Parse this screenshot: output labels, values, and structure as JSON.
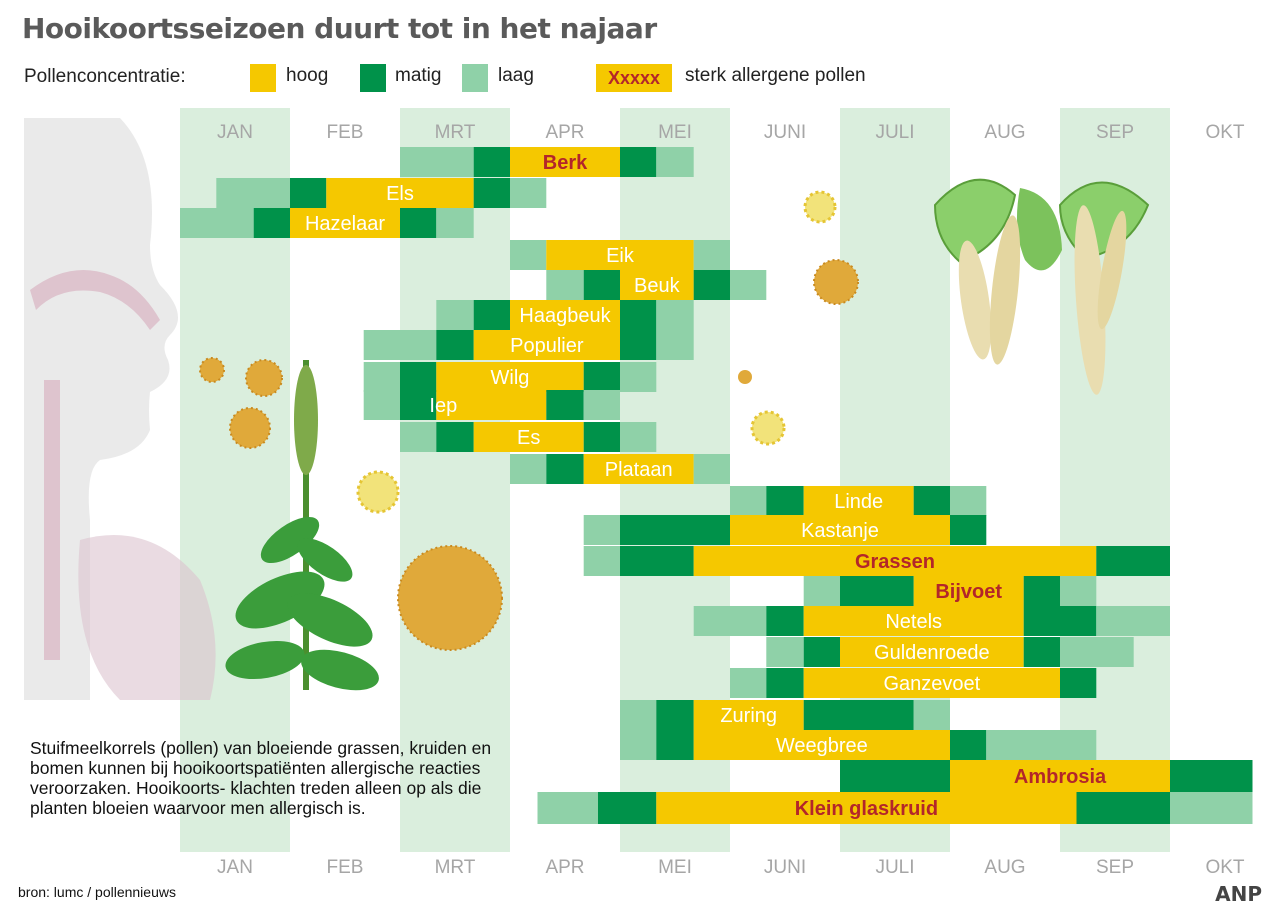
{
  "title": "Hooikoortsseizoen duurt tot in het najaar",
  "legend": {
    "title": "Pollenconcentratie:",
    "items": [
      {
        "level": "hoog",
        "label": "hoog",
        "color": "#f5c800"
      },
      {
        "level": "matig",
        "label": "matig",
        "color": "#00924a"
      },
      {
        "level": "laag",
        "label": "laag",
        "color": "#8fd1a8"
      }
    ],
    "strong_sample": "Xxxxx",
    "strong_label": "sterk allergene pollen",
    "strong_text_color": "#b3262a"
  },
  "note": "Stuifmeelkorrels (pollen) van bloeiende grassen, kruiden en bomen  kunnen bij hooikoortspatiënten allergische reacties veroorzaken. Hooikoorts- klachten treden alleen op als die  planten bloeien waarvoor men allergisch is.",
  "source": "bron:  lumc / pollennieuws",
  "brand": "ANP",
  "chart_data": {
    "type": "timeline",
    "x_unit": "month (1 = start of January)",
    "months": [
      "JAN",
      "FEB",
      "MRT",
      "APR",
      "MEI",
      "JUNI",
      "JULI",
      "AUG",
      "SEP",
      "OKT"
    ],
    "shaded_months": [
      "JAN",
      "MRT",
      "MEI",
      "JULI",
      "SEP"
    ],
    "colors": {
      "hoog": "#f5c800",
      "matig": "#00924a",
      "laag": "#8fd1a8"
    },
    "series": [
      {
        "name": "Berk",
        "strong": true,
        "segments": [
          [
            3.0,
            3.67,
            "laag"
          ],
          [
            3.67,
            4.0,
            "matig"
          ],
          [
            4.0,
            5.0,
            "hoog"
          ],
          [
            5.0,
            5.33,
            "matig"
          ],
          [
            5.33,
            5.67,
            "laag"
          ]
        ]
      },
      {
        "name": "Els",
        "strong": false,
        "segments": [
          [
            1.33,
            2.0,
            "laag"
          ],
          [
            2.0,
            2.33,
            "matig"
          ],
          [
            2.33,
            3.67,
            "hoog"
          ],
          [
            3.67,
            4.0,
            "matig"
          ],
          [
            4.0,
            4.33,
            "laag"
          ]
        ]
      },
      {
        "name": "Hazelaar",
        "strong": false,
        "segments": [
          [
            1.0,
            1.67,
            "laag"
          ],
          [
            1.67,
            2.0,
            "matig"
          ],
          [
            2.0,
            3.0,
            "hoog"
          ],
          [
            3.0,
            3.33,
            "matig"
          ],
          [
            3.33,
            3.67,
            "laag"
          ]
        ]
      },
      {
        "name": "Eik",
        "strong": false,
        "segments": [
          [
            4.0,
            4.33,
            "laag"
          ],
          [
            4.33,
            5.67,
            "hoog"
          ],
          [
            5.67,
            6.0,
            "laag"
          ]
        ]
      },
      {
        "name": "Beuk",
        "strong": false,
        "segments": [
          [
            4.33,
            4.67,
            "laag"
          ],
          [
            4.67,
            5.0,
            "matig"
          ],
          [
            5.0,
            5.67,
            "hoog"
          ],
          [
            5.67,
            6.0,
            "matig"
          ],
          [
            6.0,
            6.33,
            "laag"
          ]
        ]
      },
      {
        "name": "Haagbeuk",
        "strong": false,
        "segments": [
          [
            3.33,
            3.67,
            "laag"
          ],
          [
            3.67,
            4.0,
            "matig"
          ],
          [
            4.0,
            5.0,
            "hoog"
          ],
          [
            5.0,
            5.33,
            "matig"
          ],
          [
            5.33,
            5.67,
            "laag"
          ]
        ]
      },
      {
        "name": "Populier",
        "strong": false,
        "segments": [
          [
            2.67,
            3.33,
            "laag"
          ],
          [
            3.33,
            3.67,
            "matig"
          ],
          [
            3.67,
            5.0,
            "hoog"
          ],
          [
            5.0,
            5.33,
            "matig"
          ],
          [
            5.33,
            5.67,
            "laag"
          ]
        ]
      },
      {
        "name": "Wilg",
        "strong": false,
        "segments": [
          [
            2.67,
            3.0,
            "laag"
          ],
          [
            3.0,
            3.33,
            "matig"
          ],
          [
            3.33,
            4.67,
            "hoog"
          ],
          [
            4.67,
            5.0,
            "matig"
          ],
          [
            5.0,
            5.33,
            "laag"
          ]
        ]
      },
      {
        "name": "Iep",
        "strong": false,
        "segments": [
          [
            2.67,
            3.0,
            "laag"
          ],
          [
            3.0,
            3.33,
            "matig"
          ],
          [
            3.33,
            4.33,
            "hoog"
          ],
          [
            4.33,
            4.67,
            "matig"
          ],
          [
            4.67,
            5.0,
            "laag"
          ]
        ]
      },
      {
        "name": "Es",
        "strong": false,
        "segments": [
          [
            3.0,
            3.33,
            "laag"
          ],
          [
            3.33,
            3.67,
            "matig"
          ],
          [
            3.67,
            4.67,
            "hoog"
          ],
          [
            4.67,
            5.0,
            "matig"
          ],
          [
            5.0,
            5.33,
            "laag"
          ]
        ]
      },
      {
        "name": "Plataan",
        "strong": false,
        "segments": [
          [
            4.0,
            4.33,
            "laag"
          ],
          [
            4.33,
            4.67,
            "matig"
          ],
          [
            4.67,
            5.67,
            "hoog"
          ],
          [
            5.67,
            6.0,
            "laag"
          ]
        ]
      },
      {
        "name": "Linde",
        "strong": false,
        "segments": [
          [
            6.0,
            6.33,
            "laag"
          ],
          [
            6.33,
            6.67,
            "matig"
          ],
          [
            6.67,
            7.67,
            "hoog"
          ],
          [
            7.67,
            8.0,
            "matig"
          ],
          [
            8.0,
            8.33,
            "laag"
          ]
        ]
      },
      {
        "name": "Kastanje",
        "strong": false,
        "segments": [
          [
            4.67,
            5.0,
            "laag"
          ],
          [
            5.0,
            6.0,
            "matig"
          ],
          [
            6.0,
            8.0,
            "hoog"
          ],
          [
            8.0,
            8.33,
            "matig"
          ]
        ]
      },
      {
        "name": "Grassen",
        "strong": true,
        "segments": [
          [
            4.67,
            5.0,
            "laag"
          ],
          [
            5.0,
            5.67,
            "matig"
          ],
          [
            5.67,
            9.33,
            "hoog"
          ],
          [
            9.33,
            10.0,
            "matig"
          ]
        ]
      },
      {
        "name": "Bijvoet",
        "strong": true,
        "segments": [
          [
            6.67,
            7.0,
            "laag"
          ],
          [
            7.0,
            7.67,
            "matig"
          ],
          [
            7.67,
            8.67,
            "hoog"
          ],
          [
            8.67,
            9.0,
            "matig"
          ],
          [
            9.0,
            9.33,
            "laag"
          ]
        ]
      },
      {
        "name": "Netels",
        "strong": false,
        "segments": [
          [
            5.67,
            6.33,
            "laag"
          ],
          [
            6.33,
            6.67,
            "matig"
          ],
          [
            6.67,
            8.67,
            "hoog"
          ],
          [
            8.67,
            9.33,
            "matig"
          ],
          [
            9.33,
            10.0,
            "laag"
          ]
        ]
      },
      {
        "name": "Guldenroede",
        "strong": false,
        "segments": [
          [
            6.33,
            6.67,
            "laag"
          ],
          [
            6.67,
            7.0,
            "matig"
          ],
          [
            7.0,
            8.67,
            "hoog"
          ],
          [
            8.67,
            9.0,
            "matig"
          ],
          [
            9.0,
            9.67,
            "laag"
          ]
        ]
      },
      {
        "name": "Ganzevoet",
        "strong": false,
        "segments": [
          [
            6.0,
            6.33,
            "laag"
          ],
          [
            6.33,
            6.67,
            "matig"
          ],
          [
            6.67,
            9.0,
            "hoog"
          ],
          [
            9.0,
            9.33,
            "matig"
          ]
        ]
      },
      {
        "name": "Zuring",
        "strong": false,
        "segments": [
          [
            5.0,
            5.33,
            "laag"
          ],
          [
            5.33,
            5.67,
            "matig"
          ],
          [
            5.67,
            6.67,
            "hoog"
          ],
          [
            6.67,
            7.67,
            "matig"
          ],
          [
            7.67,
            8.0,
            "laag"
          ]
        ]
      },
      {
        "name": "Weegbree",
        "strong": false,
        "segments": [
          [
            5.0,
            5.33,
            "laag"
          ],
          [
            5.33,
            5.67,
            "matig"
          ],
          [
            5.67,
            8.0,
            "hoog"
          ],
          [
            8.0,
            8.33,
            "matig"
          ],
          [
            8.33,
            9.33,
            "laag"
          ]
        ]
      },
      {
        "name": "Ambrosia",
        "strong": true,
        "segments": [
          [
            7.0,
            8.0,
            "matig"
          ],
          [
            8.0,
            10.0,
            "hoog"
          ],
          [
            10.0,
            10.75,
            "matig"
          ]
        ]
      },
      {
        "name": "Klein glaskruid",
        "strong": true,
        "segments": [
          [
            4.25,
            4.8,
            "laag"
          ],
          [
            4.8,
            5.33,
            "matig"
          ],
          [
            5.33,
            9.15,
            "hoog"
          ],
          [
            9.15,
            10.0,
            "matig"
          ],
          [
            10.0,
            10.75,
            "laag"
          ]
        ]
      }
    ]
  }
}
